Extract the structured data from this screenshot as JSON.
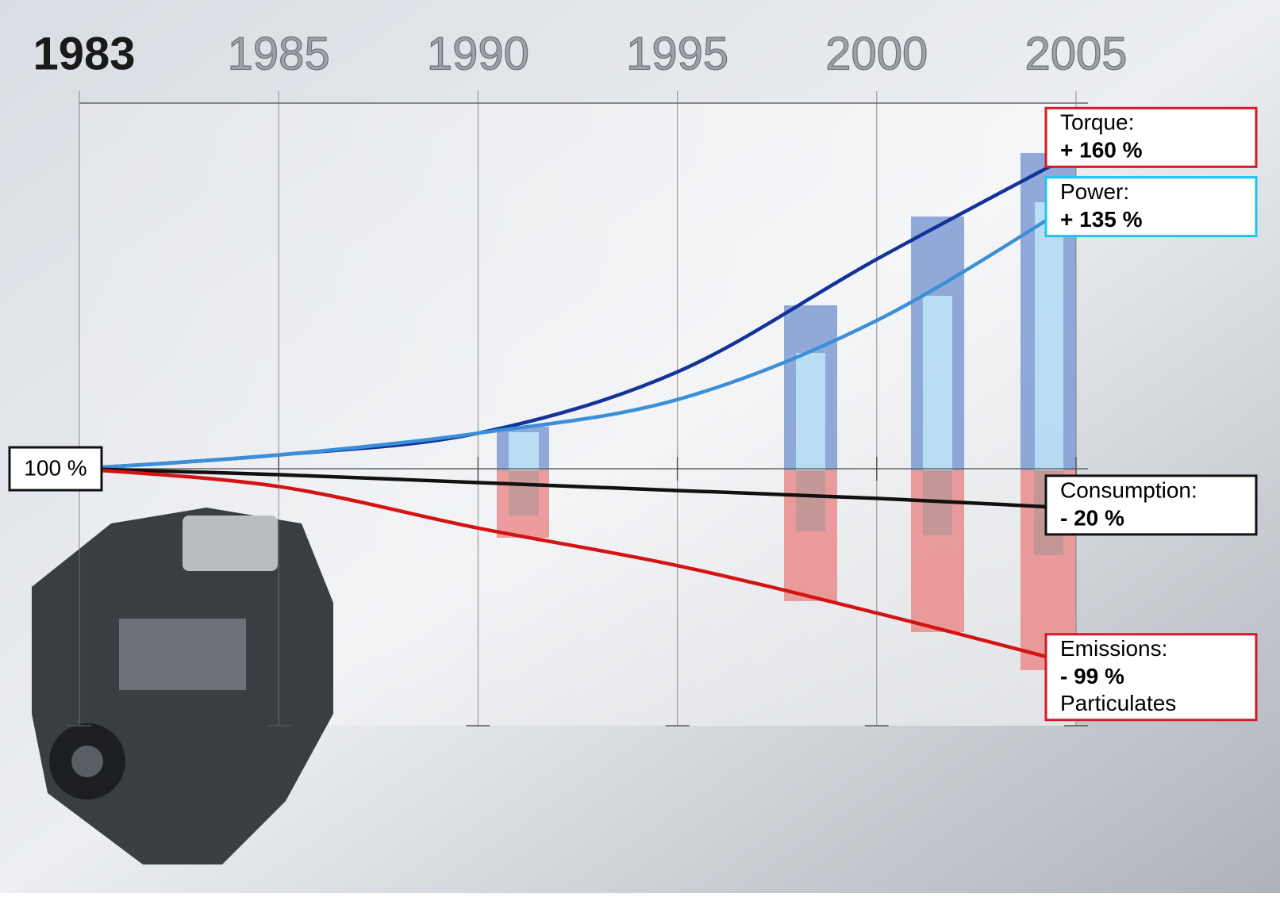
{
  "chart_data": {
    "type": "line",
    "categories": [
      "1983",
      "1985",
      "1990",
      "1995",
      "2000",
      "2005"
    ],
    "ylim": [
      -130,
      185
    ],
    "yticks": [
      {
        "value": 0,
        "label": "100 %"
      }
    ],
    "grid": true,
    "series": [
      {
        "name": "Torque:",
        "color": "#14339a",
        "box_color": "#d21a28",
        "values": [
          0,
          7,
          18,
          49,
          106,
          160
        ],
        "value_labels": [
          null,
          null,
          null,
          null,
          null,
          "+ 160 %"
        ]
      },
      {
        "name": "Power:",
        "color": "#3b8fd8",
        "box_color": "#22c3f2",
        "values": [
          0,
          7,
          18,
          35,
          75,
          135
        ],
        "value_labels": [
          null,
          null,
          null,
          null,
          null,
          "+ 135 %"
        ]
      },
      {
        "name": "Consumption:",
        "color": "#111111",
        "box_color": "#111111",
        "values": [
          0,
          -3,
          -7,
          -11,
          -15,
          -20
        ],
        "value_labels": [
          null,
          null,
          null,
          null,
          null,
          "- 20 %"
        ]
      },
      {
        "name": "Emissions:",
        "color": "#d41414",
        "box_color": "#d21a28",
        "values": [
          0,
          -9,
          -30,
          -49,
          -73,
          -99
        ],
        "value_labels": [
          null,
          null,
          null,
          null,
          null,
          "- 99 %"
        ],
        "note": "Particulates"
      }
    ]
  }
}
